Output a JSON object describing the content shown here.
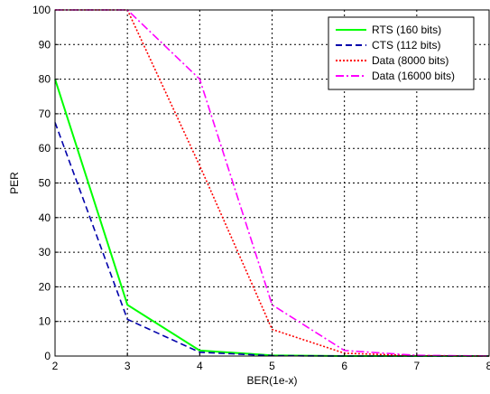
{
  "chart_data": {
    "type": "line",
    "xlabel": "BER(1e-x)",
    "ylabel": "PER",
    "xlim": [
      2,
      8
    ],
    "ylim": [
      0,
      100
    ],
    "x_ticks": [
      "2",
      "3",
      "4",
      "5",
      "6",
      "7",
      "8"
    ],
    "y_ticks": [
      "0",
      "10",
      "20",
      "30",
      "40",
      "50",
      "60",
      "70",
      "80",
      "90",
      "100"
    ],
    "grid": true,
    "legend_position": "top-right",
    "series": [
      {
        "name": "RTS (160 bits)",
        "color": "#00ff00",
        "dash": "solid",
        "x": [
          2,
          3,
          4,
          5,
          6,
          7,
          8
        ],
        "values": [
          80,
          14.8,
          1.6,
          0.2,
          0,
          0,
          0
        ]
      },
      {
        "name": "CTS (112 bits)",
        "color": "#0000aa",
        "dash": "dashed",
        "x": [
          2,
          3,
          4,
          5,
          6,
          7,
          8
        ],
        "values": [
          67.5,
          10.6,
          1.1,
          0.1,
          0,
          0,
          0
        ]
      },
      {
        "name": "Data (8000 bits)",
        "color": "#ff0000",
        "dash": "dotted",
        "x": [
          2,
          3,
          4,
          5,
          6,
          7,
          8
        ],
        "values": [
          100,
          100,
          55,
          7.7,
          0.8,
          0.1,
          0
        ]
      },
      {
        "name": "Data (16000 bits)",
        "color": "#ff00ff",
        "dash": "dashdot",
        "x": [
          2,
          3,
          4,
          5,
          6,
          7,
          8
        ],
        "values": [
          100,
          100,
          80,
          14.8,
          1.6,
          0.2,
          0
        ]
      }
    ]
  }
}
